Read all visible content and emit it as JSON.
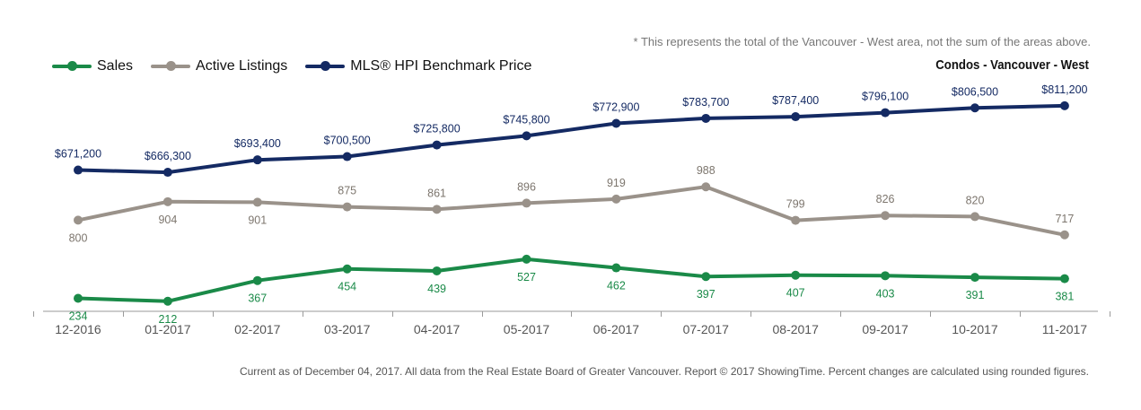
{
  "note": "* This represents the total of the Vancouver - West area, not the sum of the areas above.",
  "subtitle": "Condos - Vancouver - West",
  "footer": "Current as of December 04, 2017. All data from the Real Estate Board of Greater Vancouver. Report © 2017 ShowingTime. Percent changes are calculated using rounded figures.",
  "chart_data": {
    "type": "line",
    "categories": [
      "12-2016",
      "01-2017",
      "02-2017",
      "03-2017",
      "04-2017",
      "05-2017",
      "06-2017",
      "07-2017",
      "08-2017",
      "09-2017",
      "10-2017",
      "11-2017"
    ],
    "legend_position": "top-left",
    "grid": false,
    "series": [
      {
        "name": "Sales",
        "color": "#1a8a48",
        "values": [
          234,
          212,
          367,
          454,
          439,
          527,
          462,
          397,
          407,
          403,
          391,
          381
        ],
        "labels": [
          "234",
          "212",
          "367",
          "454",
          "439",
          "527",
          "462",
          "397",
          "407",
          "403",
          "391",
          "381"
        ]
      },
      {
        "name": "Active Listings",
        "color": "#9a928a",
        "values": [
          800,
          904,
          901,
          875,
          861,
          896,
          919,
          988,
          799,
          826,
          820,
          717
        ],
        "labels": [
          "800",
          "904",
          "901",
          "875",
          "861",
          "896",
          "919",
          "988",
          "799",
          "826",
          "820",
          "717"
        ]
      },
      {
        "name": "MLS® HPI Benchmark Price",
        "color": "#142a63",
        "values": [
          671200,
          666300,
          693400,
          700500,
          725800,
          745800,
          772900,
          783700,
          787400,
          796100,
          806500,
          811200
        ],
        "labels": [
          "$671,200",
          "$666,300",
          "$693,400",
          "$700,500",
          "$725,800",
          "$745,800",
          "$772,900",
          "$783,700",
          "$787,400",
          "$796,100",
          "$806,500",
          "$811,200"
        ]
      }
    ]
  }
}
